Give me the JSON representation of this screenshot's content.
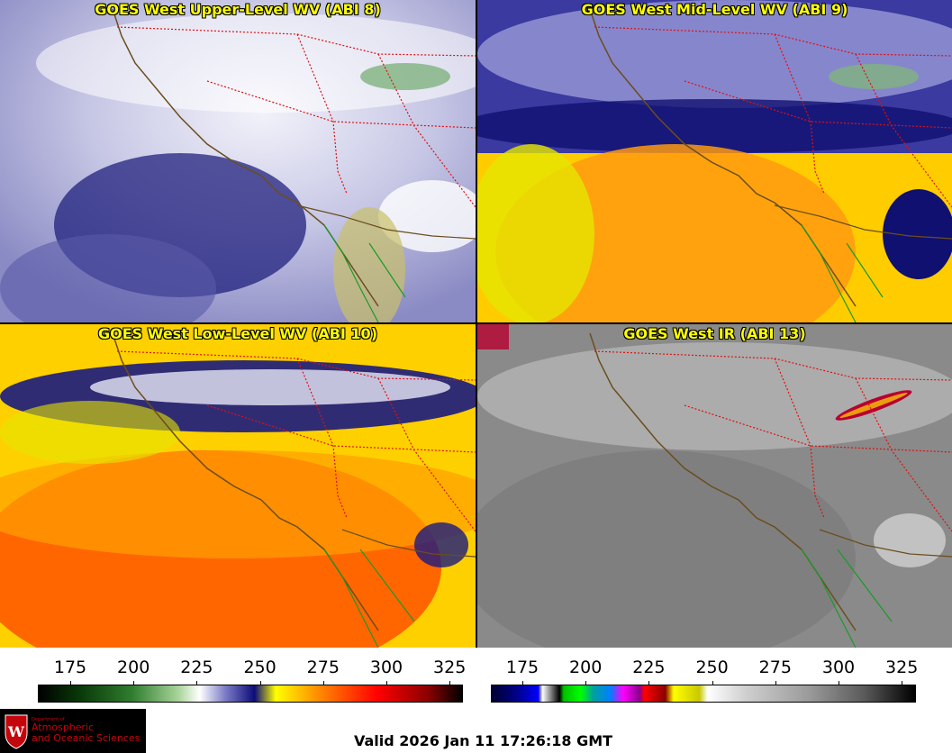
{
  "panels": [
    {
      "title": "GOES West Upper-Level WV (ABI 8)"
    },
    {
      "title": "GOES West Mid-Level WV (ABI 9)"
    },
    {
      "title": "GOES West Low-Level WV (ABI 10)"
    },
    {
      "title": "GOES West IR (ABI 13)"
    }
  ],
  "colorbars": {
    "wv": {
      "ticks": [
        "175",
        "200",
        "225",
        "250",
        "275",
        "300",
        "325"
      ],
      "colors": [
        "#000000",
        "#0a3a0a",
        "#2f7d2f",
        "#a9d49a",
        "#ffffff",
        "#7d7dc8",
        "#0c0c78",
        "#ffff00",
        "#ff8c00",
        "#ff0000",
        "#8a0000",
        "#000000"
      ]
    },
    "ir": {
      "ticks": [
        "175",
        "200",
        "225",
        "250",
        "275",
        "300",
        "325"
      ]
    }
  },
  "logo": {
    "line1": "Department of",
    "line2": "Atmospheric",
    "line3": "and Oceanic Sciences"
  },
  "valid_time": "Valid 2026 Jan 11 17:26:18 GMT"
}
